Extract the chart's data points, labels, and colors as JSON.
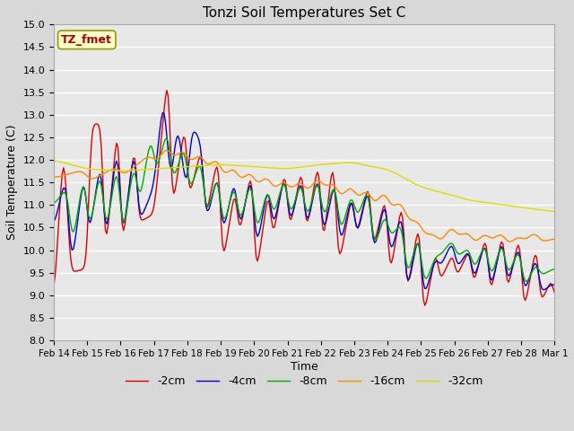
{
  "title": "Tonzi Soil Temperatures Set C",
  "xlabel": "Time",
  "ylabel": "Soil Temperature (C)",
  "ylim": [
    8.0,
    15.0
  ],
  "yticks": [
    8.0,
    8.5,
    9.0,
    9.5,
    10.0,
    10.5,
    11.0,
    11.5,
    12.0,
    12.5,
    13.0,
    13.5,
    14.0,
    14.5,
    15.0
  ],
  "xtick_labels": [
    "Feb 14",
    "Feb 15",
    "Feb 16",
    "Feb 17",
    "Feb 18",
    "Feb 19",
    "Feb 20",
    "Feb 21",
    "Feb 22",
    "Feb 23",
    "Feb 24",
    "Feb 25",
    "Feb 26",
    "Feb 27",
    "Feb 28",
    "Mar 1"
  ],
  "legend_labels": [
    "-2cm",
    "-4cm",
    "-8cm",
    "-16cm",
    "-32cm"
  ],
  "line_colors": [
    "#dd0000",
    "#0000cc",
    "#00aa00",
    "#ff8800",
    "#dddd00"
  ],
  "annotation_text": "TZ_fmet",
  "annotation_color": "#aa0000",
  "annotation_bg": "#ffffcc",
  "annotation_border": "#999900",
  "fig_bg": "#d8d8d8",
  "plot_bg": "#e8e8e8",
  "n_days": 15,
  "n_points": 360
}
